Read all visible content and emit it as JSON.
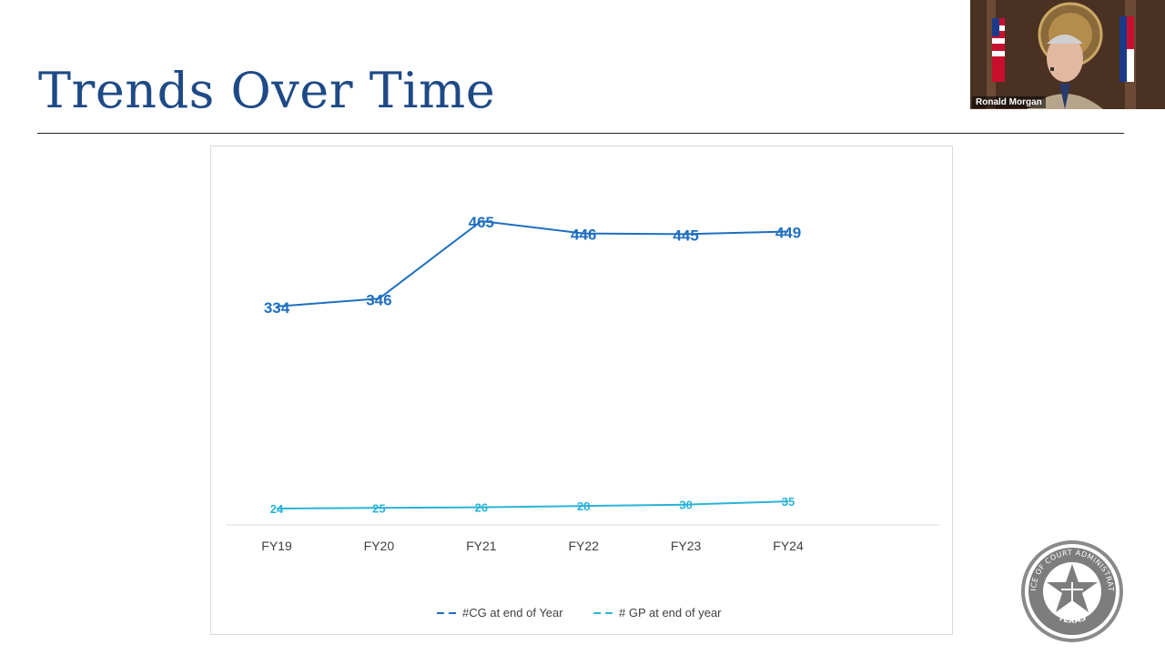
{
  "slide": {
    "title": "Trends Over Time"
  },
  "video": {
    "participant_name": "Ronald Morgan"
  },
  "seal": {
    "text_top": "OFFICE OF COURT ADMINISTRATION",
    "text_bottom": "TEXAS"
  },
  "colors": {
    "title": "#1e4a86",
    "series_cg": "#1f6fbf",
    "series_gp": "#29b3d9"
  },
  "chart_data": {
    "type": "line",
    "title": "",
    "xlabel": "",
    "ylabel": "",
    "categories": [
      "FY19",
      "FY20",
      "FY21",
      "FY22",
      "FY23",
      "FY24"
    ],
    "series": [
      {
        "name": "#CG at end of Year",
        "values": [
          334,
          346,
          465,
          446,
          445,
          449
        ],
        "color": "#1f6fbf"
      },
      {
        "name": "# GP at end of year",
        "values": [
          24,
          25,
          26,
          28,
          30,
          35
        ],
        "color": "#29b3d9"
      }
    ],
    "ylim": [
      0,
      500
    ],
    "grid": false,
    "legend_position": "bottom",
    "data_labels": true
  }
}
